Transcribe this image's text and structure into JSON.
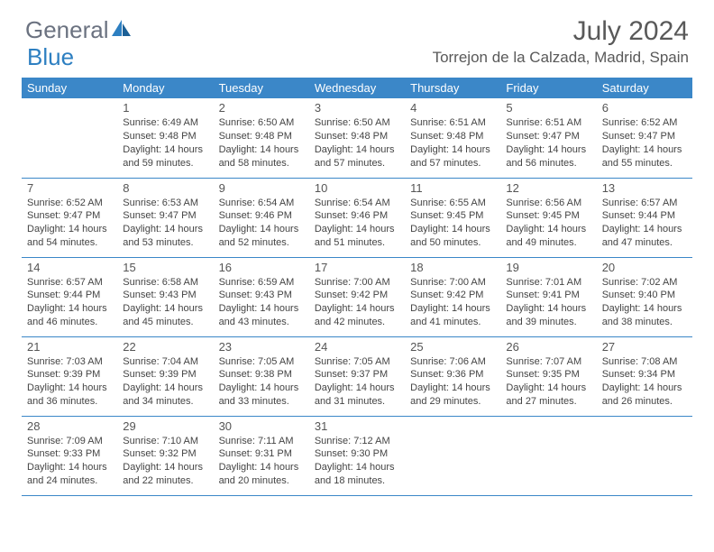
{
  "brand": {
    "part1": "General",
    "part2": "Blue"
  },
  "title": "July 2024",
  "location": "Torrejon de la Calzada, Madrid, Spain",
  "colors": {
    "header_bg": "#3b87c8",
    "header_text": "#ffffff",
    "border": "#3b87c8",
    "text": "#444444",
    "title_color": "#595959"
  },
  "weekdays": [
    "Sunday",
    "Monday",
    "Tuesday",
    "Wednesday",
    "Thursday",
    "Friday",
    "Saturday"
  ],
  "weeks": [
    [
      null,
      {
        "n": "1",
        "sr": "Sunrise: 6:49 AM",
        "ss": "Sunset: 9:48 PM",
        "d1": "Daylight: 14 hours",
        "d2": "and 59 minutes."
      },
      {
        "n": "2",
        "sr": "Sunrise: 6:50 AM",
        "ss": "Sunset: 9:48 PM",
        "d1": "Daylight: 14 hours",
        "d2": "and 58 minutes."
      },
      {
        "n": "3",
        "sr": "Sunrise: 6:50 AM",
        "ss": "Sunset: 9:48 PM",
        "d1": "Daylight: 14 hours",
        "d2": "and 57 minutes."
      },
      {
        "n": "4",
        "sr": "Sunrise: 6:51 AM",
        "ss": "Sunset: 9:48 PM",
        "d1": "Daylight: 14 hours",
        "d2": "and 57 minutes."
      },
      {
        "n": "5",
        "sr": "Sunrise: 6:51 AM",
        "ss": "Sunset: 9:47 PM",
        "d1": "Daylight: 14 hours",
        "d2": "and 56 minutes."
      },
      {
        "n": "6",
        "sr": "Sunrise: 6:52 AM",
        "ss": "Sunset: 9:47 PM",
        "d1": "Daylight: 14 hours",
        "d2": "and 55 minutes."
      }
    ],
    [
      {
        "n": "7",
        "sr": "Sunrise: 6:52 AM",
        "ss": "Sunset: 9:47 PM",
        "d1": "Daylight: 14 hours",
        "d2": "and 54 minutes."
      },
      {
        "n": "8",
        "sr": "Sunrise: 6:53 AM",
        "ss": "Sunset: 9:47 PM",
        "d1": "Daylight: 14 hours",
        "d2": "and 53 minutes."
      },
      {
        "n": "9",
        "sr": "Sunrise: 6:54 AM",
        "ss": "Sunset: 9:46 PM",
        "d1": "Daylight: 14 hours",
        "d2": "and 52 minutes."
      },
      {
        "n": "10",
        "sr": "Sunrise: 6:54 AM",
        "ss": "Sunset: 9:46 PM",
        "d1": "Daylight: 14 hours",
        "d2": "and 51 minutes."
      },
      {
        "n": "11",
        "sr": "Sunrise: 6:55 AM",
        "ss": "Sunset: 9:45 PM",
        "d1": "Daylight: 14 hours",
        "d2": "and 50 minutes."
      },
      {
        "n": "12",
        "sr": "Sunrise: 6:56 AM",
        "ss": "Sunset: 9:45 PM",
        "d1": "Daylight: 14 hours",
        "d2": "and 49 minutes."
      },
      {
        "n": "13",
        "sr": "Sunrise: 6:57 AM",
        "ss": "Sunset: 9:44 PM",
        "d1": "Daylight: 14 hours",
        "d2": "and 47 minutes."
      }
    ],
    [
      {
        "n": "14",
        "sr": "Sunrise: 6:57 AM",
        "ss": "Sunset: 9:44 PM",
        "d1": "Daylight: 14 hours",
        "d2": "and 46 minutes."
      },
      {
        "n": "15",
        "sr": "Sunrise: 6:58 AM",
        "ss": "Sunset: 9:43 PM",
        "d1": "Daylight: 14 hours",
        "d2": "and 45 minutes."
      },
      {
        "n": "16",
        "sr": "Sunrise: 6:59 AM",
        "ss": "Sunset: 9:43 PM",
        "d1": "Daylight: 14 hours",
        "d2": "and 43 minutes."
      },
      {
        "n": "17",
        "sr": "Sunrise: 7:00 AM",
        "ss": "Sunset: 9:42 PM",
        "d1": "Daylight: 14 hours",
        "d2": "and 42 minutes."
      },
      {
        "n": "18",
        "sr": "Sunrise: 7:00 AM",
        "ss": "Sunset: 9:42 PM",
        "d1": "Daylight: 14 hours",
        "d2": "and 41 minutes."
      },
      {
        "n": "19",
        "sr": "Sunrise: 7:01 AM",
        "ss": "Sunset: 9:41 PM",
        "d1": "Daylight: 14 hours",
        "d2": "and 39 minutes."
      },
      {
        "n": "20",
        "sr": "Sunrise: 7:02 AM",
        "ss": "Sunset: 9:40 PM",
        "d1": "Daylight: 14 hours",
        "d2": "and 38 minutes."
      }
    ],
    [
      {
        "n": "21",
        "sr": "Sunrise: 7:03 AM",
        "ss": "Sunset: 9:39 PM",
        "d1": "Daylight: 14 hours",
        "d2": "and 36 minutes."
      },
      {
        "n": "22",
        "sr": "Sunrise: 7:04 AM",
        "ss": "Sunset: 9:39 PM",
        "d1": "Daylight: 14 hours",
        "d2": "and 34 minutes."
      },
      {
        "n": "23",
        "sr": "Sunrise: 7:05 AM",
        "ss": "Sunset: 9:38 PM",
        "d1": "Daylight: 14 hours",
        "d2": "and 33 minutes."
      },
      {
        "n": "24",
        "sr": "Sunrise: 7:05 AM",
        "ss": "Sunset: 9:37 PM",
        "d1": "Daylight: 14 hours",
        "d2": "and 31 minutes."
      },
      {
        "n": "25",
        "sr": "Sunrise: 7:06 AM",
        "ss": "Sunset: 9:36 PM",
        "d1": "Daylight: 14 hours",
        "d2": "and 29 minutes."
      },
      {
        "n": "26",
        "sr": "Sunrise: 7:07 AM",
        "ss": "Sunset: 9:35 PM",
        "d1": "Daylight: 14 hours",
        "d2": "and 27 minutes."
      },
      {
        "n": "27",
        "sr": "Sunrise: 7:08 AM",
        "ss": "Sunset: 9:34 PM",
        "d1": "Daylight: 14 hours",
        "d2": "and 26 minutes."
      }
    ],
    [
      {
        "n": "28",
        "sr": "Sunrise: 7:09 AM",
        "ss": "Sunset: 9:33 PM",
        "d1": "Daylight: 14 hours",
        "d2": "and 24 minutes."
      },
      {
        "n": "29",
        "sr": "Sunrise: 7:10 AM",
        "ss": "Sunset: 9:32 PM",
        "d1": "Daylight: 14 hours",
        "d2": "and 22 minutes."
      },
      {
        "n": "30",
        "sr": "Sunrise: 7:11 AM",
        "ss": "Sunset: 9:31 PM",
        "d1": "Daylight: 14 hours",
        "d2": "and 20 minutes."
      },
      {
        "n": "31",
        "sr": "Sunrise: 7:12 AM",
        "ss": "Sunset: 9:30 PM",
        "d1": "Daylight: 14 hours",
        "d2": "and 18 minutes."
      },
      null,
      null,
      null
    ]
  ]
}
